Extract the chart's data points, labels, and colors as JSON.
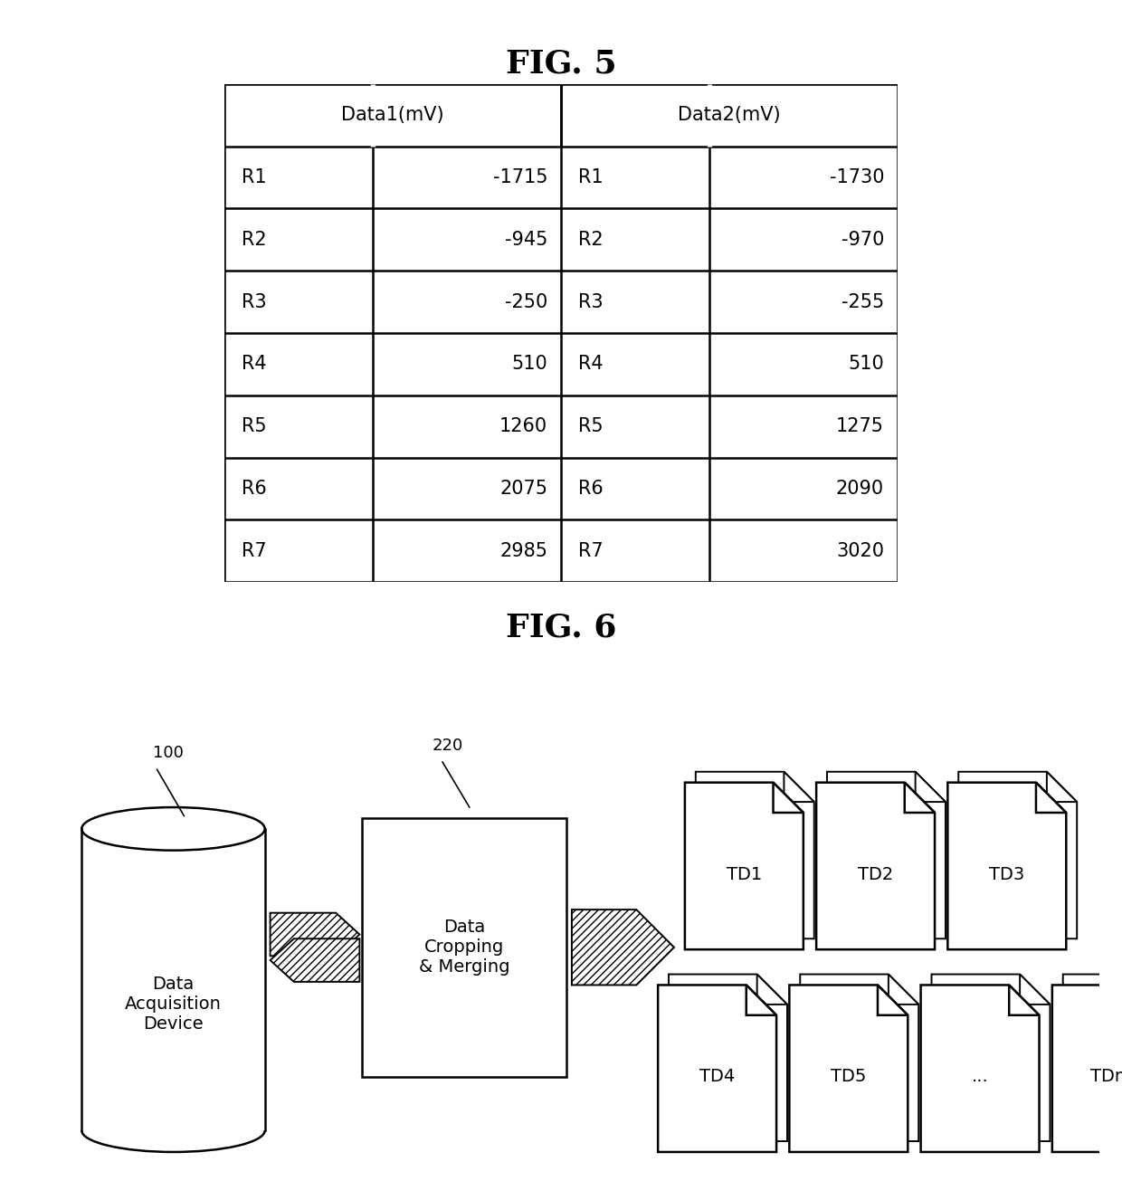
{
  "fig5_title": "FIG. 5",
  "fig6_title": "FIG. 6",
  "table_header": [
    "Data1(mV)",
    "Data2(mV)"
  ],
  "table_rows": [
    [
      "R1",
      "-1715",
      "R1",
      "-1730"
    ],
    [
      "R2",
      "-945",
      "R2",
      "-970"
    ],
    [
      "R3",
      "-250",
      "R3",
      "-255"
    ],
    [
      "R4",
      "510",
      "R4",
      "510"
    ],
    [
      "R5",
      "1260",
      "R5",
      "1275"
    ],
    [
      "R6",
      "2075",
      "R6",
      "2090"
    ],
    [
      "R7",
      "2985",
      "R7",
      "3020"
    ]
  ],
  "label_100": "100",
  "label_220": "220",
  "cylinder_label": "Data\nAcquisition\nDevice",
  "box_label": "Data\nCropping\n& Merging",
  "td_labels_top": [
    "TD1",
    "TD2",
    "TD3"
  ],
  "td_labels_bottom": [
    "TD4",
    "TD5",
    "...",
    "TDm"
  ],
  "bg_color": "#ffffff",
  "line_color": "#000000",
  "font_size_title": 26,
  "font_size_table": 15,
  "font_size_diagram": 14,
  "font_size_label": 13
}
